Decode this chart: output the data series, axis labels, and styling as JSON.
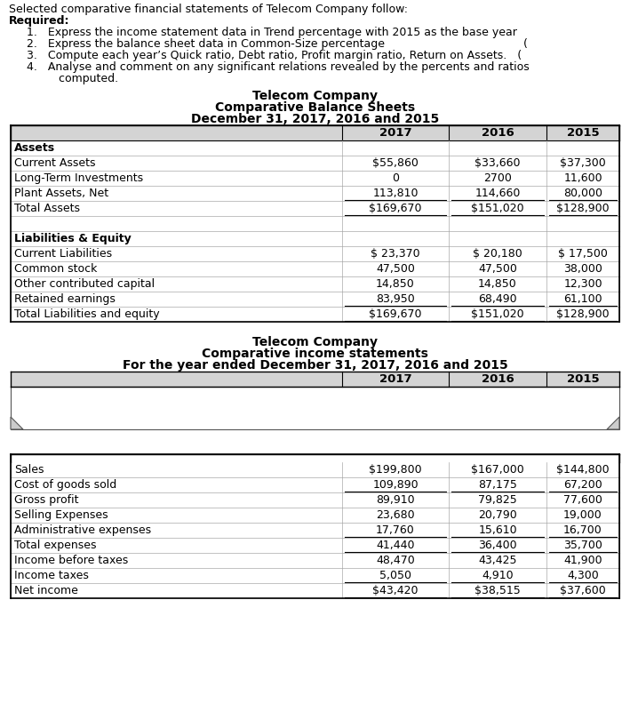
{
  "intro_text": "Selected comparative financial statements of Telecom Company follow:",
  "required_label": "Required:",
  "required_items": [
    "1.   Express the income statement data in Trend percentage with 2015 as the base year",
    "2.   Express the balance sheet data in Common-Size percentage                                       (",
    "3.   Compute each year’s Quick ratio, Debt ratio, Profit margin ratio, Return on Assets.   (",
    "4.   Analyse and comment on any significant relations revealed by the percents and ratios\n         computed."
  ],
  "bs_company": "Telecom Company",
  "bs_title1": "Comparative Balance Sheets",
  "bs_title2": "December 31, 2017, 2016 and 2015",
  "bs_headers": [
    "",
    "2017",
    "2016",
    "2015"
  ],
  "bs_rows": [
    {
      "label": "Assets",
      "bold": true,
      "values": [
        "",
        "",
        ""
      ],
      "underline_val": false
    },
    {
      "label": "Current Assets",
      "bold": false,
      "values": [
        "$55,860",
        "$33,660",
        "$37,300"
      ],
      "underline_val": false
    },
    {
      "label": "Long-Term Investments",
      "bold": false,
      "values": [
        "0",
        "2700",
        "11,600"
      ],
      "underline_val": false
    },
    {
      "label": "Plant Assets, Net",
      "bold": false,
      "values": [
        "113,810",
        "114,660",
        "80,000"
      ],
      "underline_val": true
    },
    {
      "label": "Total Assets",
      "bold": false,
      "values": [
        "$169,670",
        "$151,020",
        "$128,900"
      ],
      "underline_val": true
    },
    {
      "label": "",
      "bold": false,
      "values": [
        "",
        "",
        ""
      ],
      "underline_val": false
    },
    {
      "label": "Liabilities & Equity",
      "bold": true,
      "values": [
        "",
        "",
        ""
      ],
      "underline_val": false
    },
    {
      "label": "Current Liabilities",
      "bold": false,
      "values": [
        "$ 23,370",
        "$ 20,180",
        "$ 17,500"
      ],
      "underline_val": false
    },
    {
      "label": "Common stock",
      "bold": false,
      "values": [
        "47,500",
        "47,500",
        "38,000"
      ],
      "underline_val": false
    },
    {
      "label": "Other contributed capital",
      "bold": false,
      "values": [
        "14,850",
        "14,850",
        "12,300"
      ],
      "underline_val": false
    },
    {
      "label": "Retained earnings",
      "bold": false,
      "values": [
        "83,950",
        "68,490",
        "61,100"
      ],
      "underline_val": true
    },
    {
      "label": "Total Liabilities and equity",
      "bold": false,
      "values": [
        "$169,670",
        "$151,020",
        "$128,900"
      ],
      "underline_val": true
    }
  ],
  "is_company": "Telecom Company",
  "is_title1": "Comparative income statements",
  "is_title2": "For the year ended December 31, 2017, 2016 and 2015",
  "is_headers": [
    "",
    "2017",
    "2016",
    "2015"
  ],
  "is_rows": [
    {
      "label": "Sales",
      "bold": false,
      "values": [
        "$199,800",
        "$167,000",
        "$144,800"
      ],
      "underline_val": false
    },
    {
      "label": "Cost of goods sold",
      "bold": false,
      "values": [
        "109,890",
        "87,175",
        "67,200"
      ],
      "underline_val": true
    },
    {
      "label": "Gross profit",
      "bold": false,
      "values": [
        "89,910",
        "79,825",
        "77,600"
      ],
      "underline_val": false
    },
    {
      "label": "Selling Expenses",
      "bold": false,
      "values": [
        "23,680",
        "20,790",
        "19,000"
      ],
      "underline_val": false
    },
    {
      "label": "Administrative expenses",
      "bold": false,
      "values": [
        "17,760",
        "15,610",
        "16,700"
      ],
      "underline_val": true
    },
    {
      "label": "Total expenses",
      "bold": false,
      "values": [
        "41,440",
        "36,400",
        "35,700"
      ],
      "underline_val": true
    },
    {
      "label": "Income before taxes",
      "bold": false,
      "values": [
        "48,470",
        "43,425",
        "41,900"
      ],
      "underline_val": false
    },
    {
      "label": "Income taxes",
      "bold": false,
      "values": [
        "5,050",
        "4,910",
        "4,300"
      ],
      "underline_val": true
    },
    {
      "label": "Net income",
      "bold": false,
      "values": [
        "$43,420",
        "$38,515",
        "$37,600"
      ],
      "underline_val": true
    }
  ],
  "bg_color": "#ffffff",
  "header_bg": "#d4d4d4",
  "text_color": "#000000",
  "font_size": 9.0,
  "header_font_size": 9.5,
  "title_font_size": 10.0
}
